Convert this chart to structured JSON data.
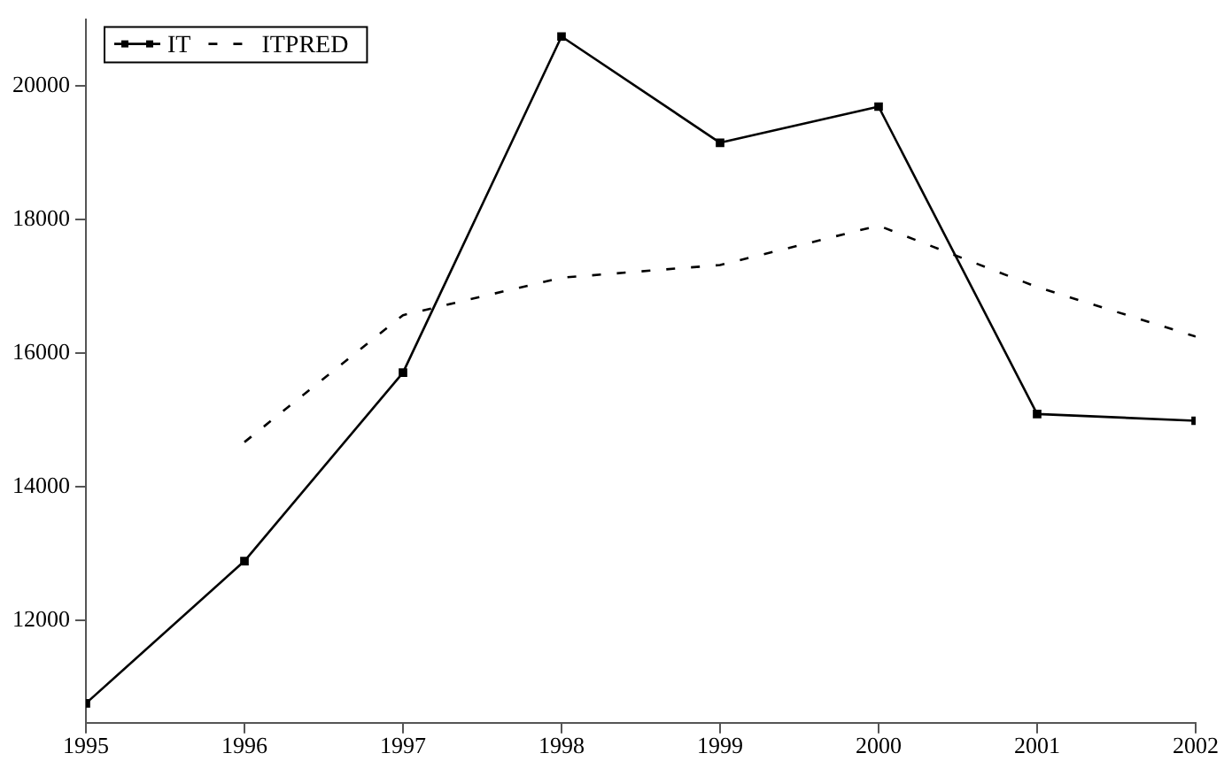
{
  "chart_data": {
    "type": "line",
    "x": [
      1995,
      1996,
      1997,
      1998,
      1999,
      2000,
      2001,
      2002
    ],
    "series": [
      {
        "name": "IT",
        "color": "#000000",
        "marker": "square",
        "line_style": "solid",
        "values": [
          10760,
          12890,
          15710,
          20740,
          19150,
          19690,
          15090,
          14990
        ]
      },
      {
        "name": "ITPRED",
        "color": "#000000",
        "marker": "none",
        "line_style": "dashed",
        "values": [
          null,
          14670,
          16570,
          17130,
          17320,
          17910,
          16990,
          16250
        ]
      }
    ],
    "xlim": [
      1995,
      2002
    ],
    "xticks": [
      1995,
      1996,
      1997,
      1998,
      1999,
      2000,
      2001,
      2002
    ],
    "ylim": [
      10470,
      21000
    ],
    "yticks": [
      12000,
      14000,
      16000,
      18000,
      20000
    ],
    "grid": false,
    "legend": "top left"
  }
}
